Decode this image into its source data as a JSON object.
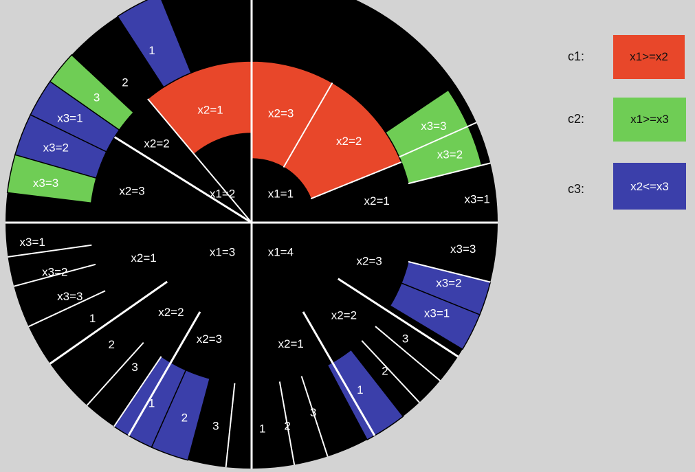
{
  "colors": {
    "background": "#d3d3d3",
    "black": "#000000",
    "red": "#e8472a",
    "green": "#6fcd55",
    "blue": "#3b3faa",
    "divider": "#ffffff"
  },
  "legend": [
    {
      "name": "c1:",
      "text": "x1>=x2",
      "color": "red"
    },
    {
      "name": "c2:",
      "text": "x1>=x3",
      "color": "green"
    },
    {
      "name": "c3:",
      "text": "x2<=x3",
      "color": "blue"
    }
  ],
  "tree": {
    "x1_1": {
      "label": "x1=1",
      "x2_3": "x2=3",
      "x2_2": "x2=2",
      "x2_1": "x2=1",
      "x3_3": "x3=3",
      "x3_2": "x3=2",
      "x3_1": "x3=1"
    },
    "x1_2": {
      "label": "x1=2",
      "x2_1": "x2=1",
      "x2_2": "x2=2",
      "x2_3": "x2=3",
      "x3_1": "x3=1",
      "x3_2": "x3=2",
      "x3_3": "x3=3",
      "leaf_1": "1",
      "leaf_2": "2",
      "leaf_3": "3"
    },
    "x1_3": {
      "label": "x1=3",
      "x2_1": "x2=1",
      "x2_2": "x2=2",
      "x2_3": "x2=3",
      "x3_1": "x3=1",
      "x3_2": "x3=2",
      "x3_3": "x3=3",
      "a_1": "1",
      "a_2": "2",
      "a_3": "3",
      "b_1": "1",
      "b_2": "2",
      "b_3": "3"
    },
    "x1_4": {
      "label": "x1=4",
      "x2_3": "x2=3",
      "x2_2": "x2=2",
      "x2_1": "x2=1",
      "x3_3": "x3=3",
      "x3_2": "x3=2",
      "x3_1": "x3=1",
      "a_3": "3",
      "a_2": "2",
      "a_1": "1",
      "b_3": "3",
      "b_2": "2",
      "b_1": "1"
    }
  }
}
